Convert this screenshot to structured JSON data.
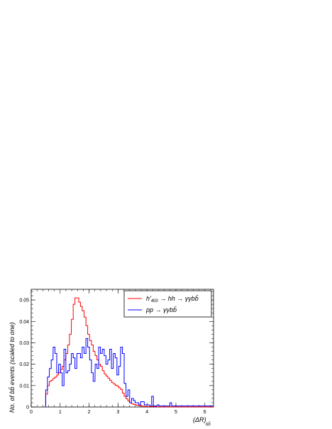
{
  "chart_data": {
    "type": "line",
    "subtype": "step-histogram",
    "xlabel": "(ΔR)",
    "xlabel_subscript": "bb̄",
    "ylabel": "No.  of   bb̄   events   (scaled   to   one)",
    "xlim": [
      0,
      6.3
    ],
    "ylim": [
      0,
      0.055
    ],
    "x_ticks": [
      0,
      1,
      2,
      3,
      4,
      5,
      6
    ],
    "y_ticks": [
      0,
      0.01,
      0.02,
      0.03,
      0.04,
      0.05
    ],
    "x_tick_labels": [
      "0",
      "1",
      "2",
      "3",
      "4",
      "5",
      "6"
    ],
    "y_tick_labels": [
      "0",
      "0.01",
      "0.02",
      "0.03",
      "0.04",
      "0.05"
    ],
    "grid": false,
    "legend_position": "top-right",
    "bin_width": 0.063,
    "series": [
      {
        "name": "h′₄₀₀ → hh → γγbb̄",
        "legend_label_main": "h′",
        "legend_label_sub": "400",
        "legend_label_rest": " → hh → γγbb̄",
        "color": "#ff0000",
        "x": [
          0.5,
          0.56,
          0.63,
          0.69,
          0.76,
          0.82,
          0.88,
          0.95,
          1.01,
          1.07,
          1.13,
          1.2,
          1.26,
          1.32,
          1.39,
          1.45,
          1.51,
          1.58,
          1.64,
          1.7,
          1.76,
          1.83,
          1.89,
          1.95,
          2.02,
          2.08,
          2.14,
          2.21,
          2.27,
          2.33,
          2.39,
          2.46,
          2.52,
          2.58,
          2.65,
          2.71,
          2.77,
          2.84,
          2.9,
          2.96,
          3.02,
          3.09,
          3.15,
          3.21,
          3.28,
          3.34,
          3.4,
          3.47,
          3.53,
          3.59,
          3.65,
          3.72,
          3.78,
          3.84,
          3.91,
          3.97,
          4.03,
          4.1,
          4.16,
          4.22,
          4.28,
          4.35,
          4.41,
          4.47,
          4.54,
          4.6,
          4.66,
          4.73,
          4.79,
          4.85,
          4.91,
          4.98,
          5.04,
          5.1,
          5.17,
          5.23,
          5.29,
          5.36,
          5.42,
          5.48,
          5.54,
          5.61,
          5.67,
          5.73,
          5.8,
          5.86,
          5.92,
          5.99,
          6.05,
          6.11,
          6.17,
          6.24
        ],
        "values": [
          0.006,
          0.01,
          0.012,
          0.0125,
          0.0135,
          0.014,
          0.015,
          0.016,
          0.0175,
          0.019,
          0.022,
          0.025,
          0.029,
          0.034,
          0.041,
          0.048,
          0.051,
          0.051,
          0.049,
          0.047,
          0.045,
          0.042,
          0.038,
          0.034,
          0.031,
          0.029,
          0.026,
          0.024,
          0.022,
          0.02,
          0.019,
          0.017,
          0.0155,
          0.0145,
          0.0135,
          0.0125,
          0.0115,
          0.0108,
          0.0102,
          0.0098,
          0.009,
          0.0082,
          0.0065,
          0.005,
          0.0038,
          0.0028,
          0.002,
          0.0015,
          0.0012,
          0.001,
          0.0008,
          0.0006,
          0.0005,
          0.0004,
          0.0003,
          0.0002,
          0.0002,
          0.0002,
          0.0002,
          0.0002,
          0.0002,
          0.0001,
          0.0001,
          0.0001,
          0.0001,
          0.0001,
          0.0001,
          0.0001,
          0.0001,
          0.0001,
          0.0001,
          0.0001,
          0.0001,
          0.0001,
          0.0001,
          0.0001,
          0.0001,
          0.0001,
          0.0001,
          0.0001,
          0.0001,
          0.0001,
          0.0001,
          0.0001,
          0.0001,
          0.0001,
          0.0001,
          0.0001,
          0.0001,
          0.0001,
          0.0001,
          0.0001
        ]
      },
      {
        "name": "pp → γγbb̄",
        "legend_label_main": "pp → γγbb̄",
        "legend_label_sub": "",
        "legend_label_rest": "",
        "color": "#0000ff",
        "x": [
          0.5,
          0.56,
          0.63,
          0.69,
          0.76,
          0.82,
          0.88,
          0.95,
          1.01,
          1.07,
          1.13,
          1.2,
          1.26,
          1.32,
          1.39,
          1.45,
          1.51,
          1.58,
          1.64,
          1.7,
          1.76,
          1.83,
          1.89,
          1.95,
          2.02,
          2.08,
          2.14,
          2.21,
          2.27,
          2.33,
          2.39,
          2.46,
          2.52,
          2.58,
          2.65,
          2.71,
          2.77,
          2.84,
          2.9,
          2.96,
          3.02,
          3.09,
          3.15,
          3.21,
          3.28,
          3.34,
          3.4,
          3.47,
          3.53,
          3.59,
          3.65,
          3.72,
          3.78,
          3.84,
          3.91,
          3.97,
          4.03,
          4.1,
          4.16,
          4.22,
          4.28,
          4.35,
          4.41,
          4.47,
          4.54,
          4.6,
          4.66,
          4.73,
          4.79,
          4.85,
          4.91,
          4.98,
          5.04,
          5.1,
          5.17,
          5.23,
          5.29,
          5.36,
          5.42,
          5.48,
          5.54,
          5.61,
          5.67,
          5.73,
          5.8,
          5.86,
          5.92,
          5.99,
          6.05,
          6.11,
          6.17,
          6.24
        ],
        "values": [
          0.008,
          0.014,
          0.018,
          0.022,
          0.028,
          0.025,
          0.016,
          0.02,
          0.016,
          0.01,
          0.027,
          0.016,
          0.017,
          0.02,
          0.025,
          0.023,
          0.018,
          0.025,
          0.025,
          0.023,
          0.028,
          0.025,
          0.032,
          0.028,
          0.022,
          0.016,
          0.012,
          0.02,
          0.018,
          0.028,
          0.025,
          0.027,
          0.024,
          0.02,
          0.022,
          0.027,
          0.018,
          0.025,
          0.023,
          0.015,
          0.019,
          0.028,
          0.025,
          0.011,
          0.005,
          0.008,
          0.002,
          0.004,
          0.003,
          0.002,
          0.002,
          0.001,
          0.0025,
          0.0025,
          0.001,
          0.001,
          0.001,
          0.0005,
          0.005,
          0.0005,
          0.0005,
          0.001,
          0.0005,
          0.0005,
          0.0005,
          0.0005,
          0.0005,
          0.0005,
          0.002,
          0.0005,
          0.0005,
          0.0005,
          0.0005,
          0.0005,
          0.0005,
          0.0005,
          0.0005,
          0.0005,
          0.0005,
          0.0005,
          0.0005,
          0.0005,
          0.0005,
          0.0005,
          0.0005,
          0.0005,
          0.0005,
          0.0005,
          0.0005,
          0.0005,
          0.0005,
          0.0005
        ]
      }
    ]
  }
}
